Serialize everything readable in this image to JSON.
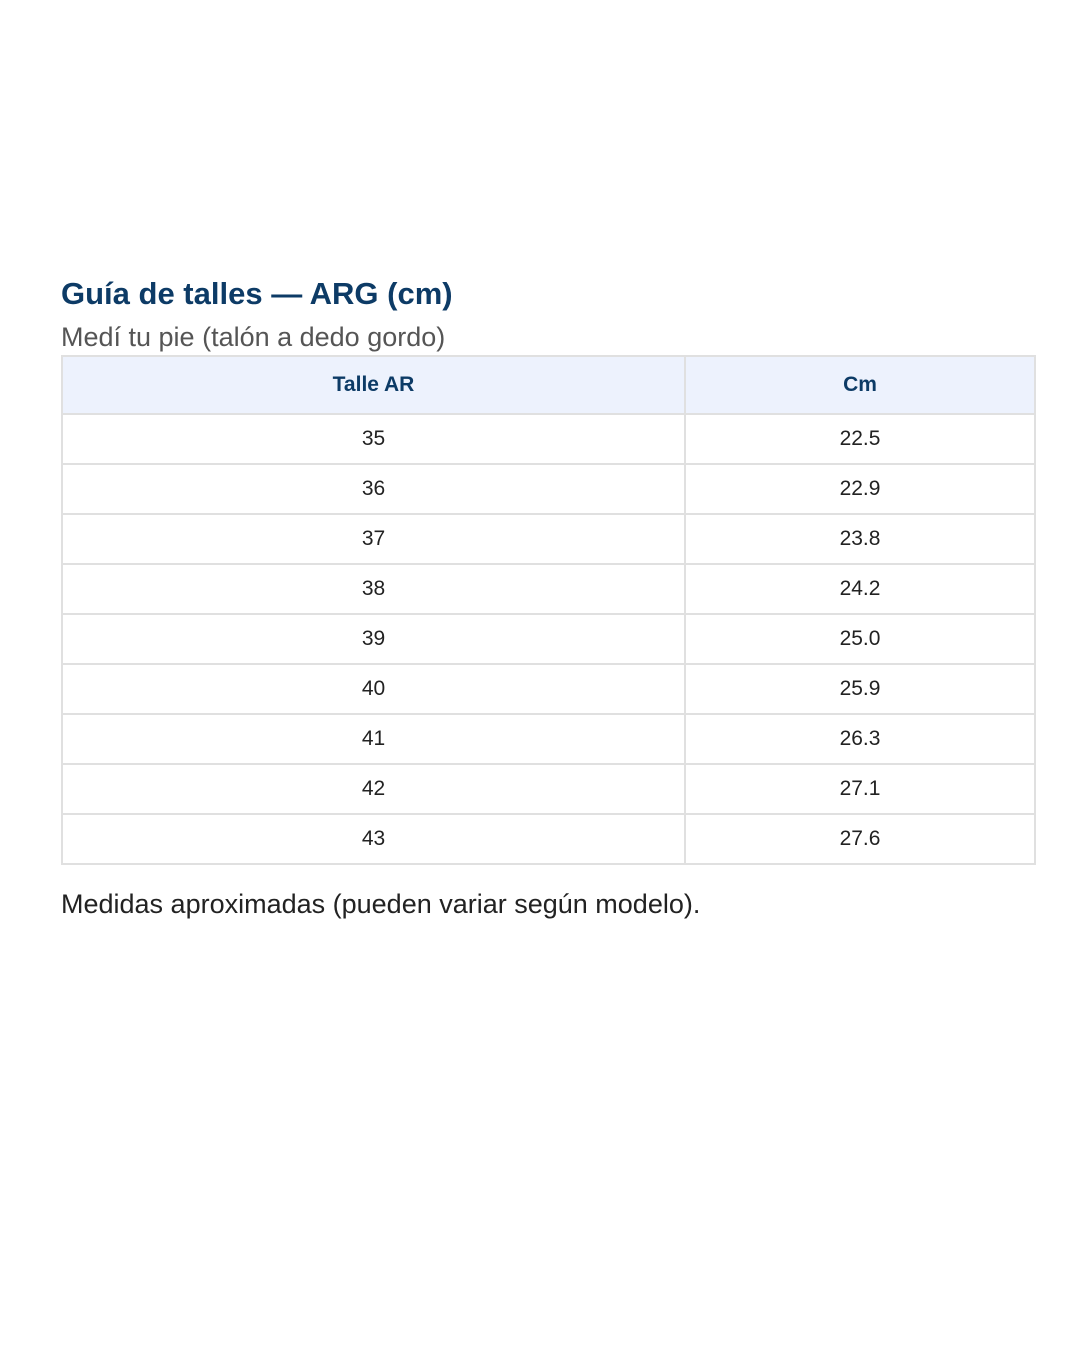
{
  "title": "Guía de talles — ARG (cm)",
  "subtitle": "Medí tu pie (talón a dedo gordo)",
  "table": {
    "headers": [
      "Talle AR",
      "Cm"
    ],
    "rows": [
      [
        "35",
        "22.5"
      ],
      [
        "36",
        "22.9"
      ],
      [
        "37",
        "23.8"
      ],
      [
        "38",
        "24.2"
      ],
      [
        "39",
        "25.0"
      ],
      [
        "40",
        "25.9"
      ],
      [
        "41",
        "26.3"
      ],
      [
        "42",
        "27.1"
      ],
      [
        "43",
        "27.6"
      ]
    ]
  },
  "note": "Medidas aproximadas (pueden variar según modelo).",
  "colors": {
    "title": "#0d3b66",
    "header_bg": "#edf2fd",
    "border": "#e0e0e0"
  }
}
